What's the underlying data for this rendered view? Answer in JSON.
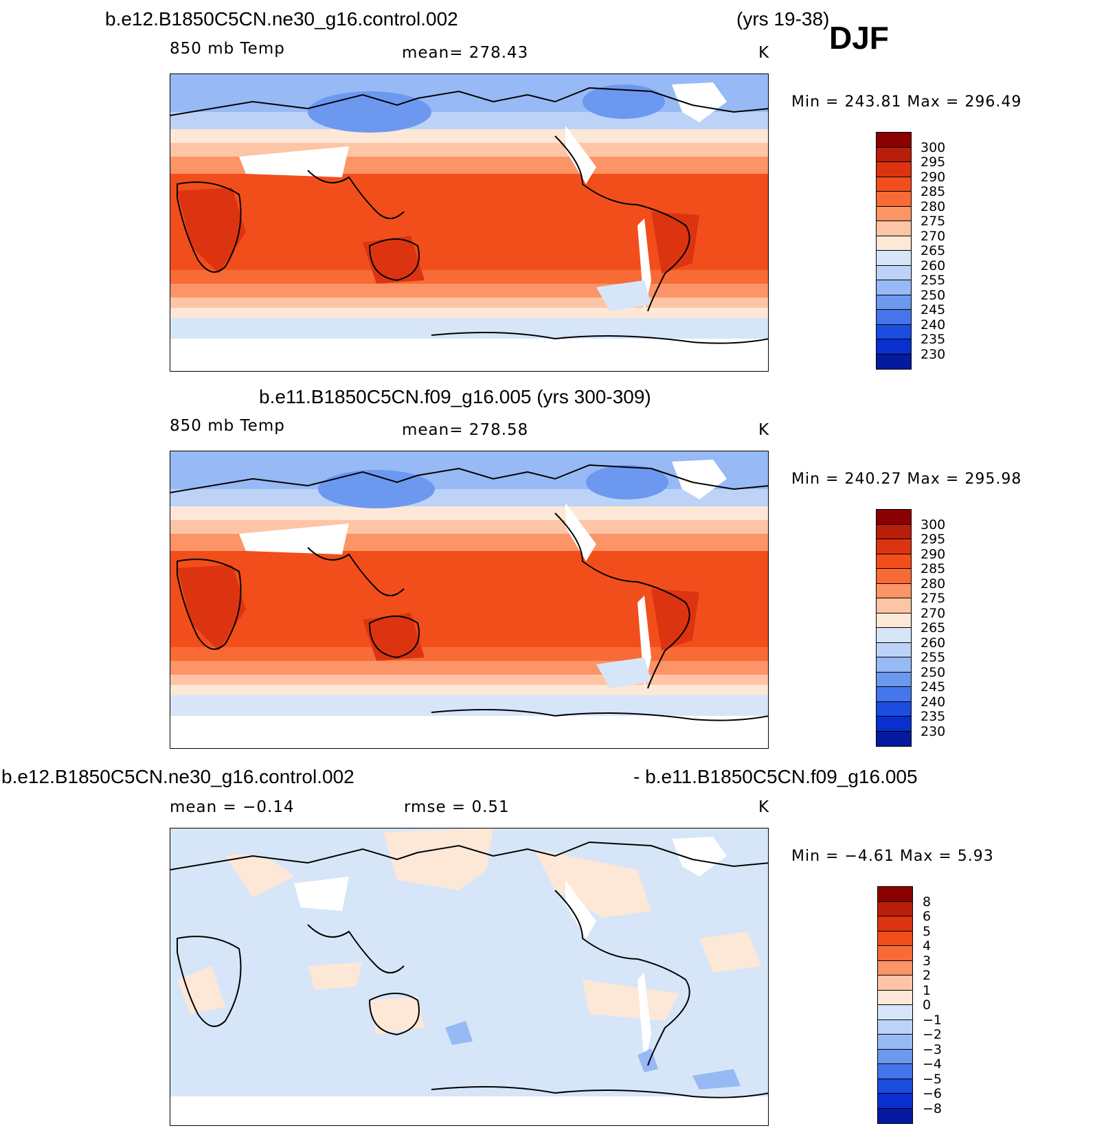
{
  "season": "DJF",
  "panels": [
    {
      "title": "b.e12.B1850C5CN.ne30_g16.control.002",
      "title_right": "(yrs 19-38)",
      "variable": "850  mb  Temp",
      "stat": "mean=  278.43",
      "units": "K",
      "minmax": "Min  =  243.81  Max  =  296.49",
      "colorbar_labels": [
        "300",
        "295",
        "290",
        "285",
        "280",
        "275",
        "270",
        "265",
        "260",
        "255",
        "250",
        "245",
        "240",
        "235",
        "230"
      ],
      "colors": [
        "#8b0000",
        "#b91e0a",
        "#dc3411",
        "#f24e1b",
        "#f86b36",
        "#fb9466",
        "#fdc5a6",
        "#fde7d6",
        "#d6e6f8",
        "#bcd3f7",
        "#97b9f5",
        "#6c98f0",
        "#4475ea",
        "#1b4ee0",
        "#0a2fcf",
        "#051a9e"
      ],
      "chart_data": {
        "type": "heatmap",
        "title": "b.e12.B1850C5CN.ne30_g16.control.002 (yrs 19-38)",
        "variable": "850 mb Temp",
        "units": "K",
        "mean": 278.43,
        "min": 243.81,
        "max": 296.49,
        "contour_levels": [
          230,
          235,
          240,
          245,
          250,
          255,
          260,
          265,
          270,
          275,
          280,
          285,
          290,
          295,
          300
        ]
      }
    },
    {
      "title": "b.e11.B1850C5CN.f09_g16.005 (yrs 300-309)",
      "variable": "850  mb  Temp",
      "stat": "mean=  278.58",
      "units": "K",
      "minmax": "Min  =  240.27  Max  =  295.98",
      "colorbar_labels": [
        "300",
        "295",
        "290",
        "285",
        "280",
        "275",
        "270",
        "265",
        "260",
        "255",
        "250",
        "245",
        "240",
        "235",
        "230"
      ],
      "colors": [
        "#8b0000",
        "#b91e0a",
        "#dc3411",
        "#f24e1b",
        "#f86b36",
        "#fb9466",
        "#fdc5a6",
        "#fde7d6",
        "#d6e6f8",
        "#bcd3f7",
        "#97b9f5",
        "#6c98f0",
        "#4475ea",
        "#1b4ee0",
        "#0a2fcf",
        "#051a9e"
      ],
      "chart_data": {
        "type": "heatmap",
        "title": "b.e11.B1850C5CN.f09_g16.005 (yrs 300-309)",
        "variable": "850 mb Temp",
        "units": "K",
        "mean": 278.58,
        "min": 240.27,
        "max": 295.98,
        "contour_levels": [
          230,
          235,
          240,
          245,
          250,
          255,
          260,
          265,
          270,
          275,
          280,
          285,
          290,
          295,
          300
        ]
      }
    },
    {
      "title": "b.e12.B1850C5CN.ne30_g16.control.002",
      "title_right": "- b.e11.B1850C5CN.f09_g16.005",
      "stat_left": "mean  =    −0.14",
      "stat": "rmse  =      0.51",
      "units": "K",
      "minmax": "Min  =    −4.61  Max  =      5.93",
      "colorbar_labels": [
        "8",
        "6",
        "5",
        "4",
        "3",
        "2",
        "1",
        "0",
        "−1",
        "−2",
        "−3",
        "−4",
        "−5",
        "−6",
        "−8"
      ],
      "colors": [
        "#8b0000",
        "#b91e0a",
        "#dc3411",
        "#f24e1b",
        "#f86b36",
        "#fb9466",
        "#fdc5a6",
        "#fde7d6",
        "#d6e6f8",
        "#bcd3f7",
        "#97b9f5",
        "#6c98f0",
        "#4475ea",
        "#1b4ee0",
        "#0a2fcf",
        "#051a9e"
      ],
      "chart_data": {
        "type": "heatmap",
        "title": "b.e12.B1850C5CN.ne30_g16.control.002 - b.e11.B1850C5CN.f09_g16.005",
        "units": "K",
        "mean": -0.14,
        "rmse": 0.51,
        "min": -4.61,
        "max": 5.93,
        "contour_levels": [
          -8,
          -6,
          -5,
          -4,
          -3,
          -2,
          -1,
          0,
          1,
          2,
          3,
          4,
          5,
          6,
          8
        ]
      }
    }
  ]
}
